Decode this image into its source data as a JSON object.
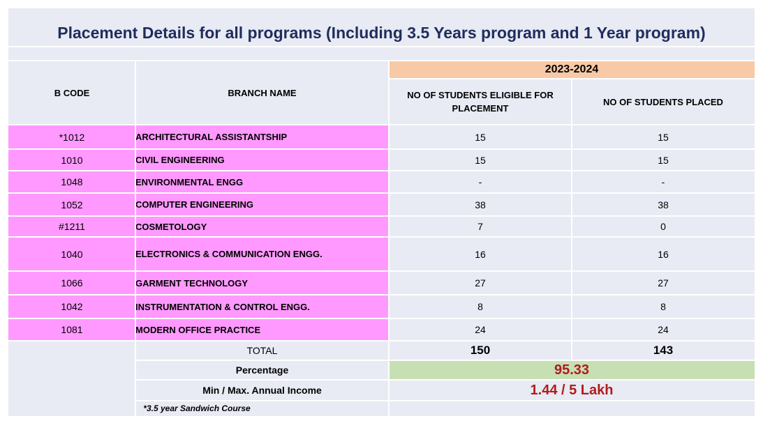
{
  "title": "Placement Details for all programs (Including 3.5 Years program and 1 Year program)",
  "header": {
    "year": "2023-2024",
    "bcode": "B CODE",
    "branch": "BRANCH NAME",
    "eligible": "NO OF STUDENTS ELIGIBLE FOR PLACEMENT",
    "placed": "NO OF STUDENTS PLACED"
  },
  "colors": {
    "pink": "#ff99ff",
    "year_band": "#f7c9a6",
    "percentage_band": "#c6e0b4",
    "title": "#1f2d5c",
    "accent_red": "#b01c1c"
  },
  "rows": [
    {
      "code": "*1012",
      "name": "ARCHITECTURAL ASSISTANTSHIP",
      "eligible": "15",
      "placed": "15"
    },
    {
      "code": "1010",
      "name": "CIVIL ENGINEERING",
      "eligible": "15",
      "placed": "15"
    },
    {
      "code": "1048",
      "name": "ENVIRONMENTAL ENGG",
      "eligible": "-",
      "placed": "-"
    },
    {
      "code": "1052",
      "name": "COMPUTER ENGINEERING",
      "eligible": "38",
      "placed": "38"
    },
    {
      "code": "#1211",
      "name": "COSMETOLOGY",
      "eligible": "7",
      "placed": "0"
    },
    {
      "code": "1040",
      "name": "ELECTRONICS & COMMUNICATION ENGG.",
      "eligible": "16",
      "placed": "16"
    },
    {
      "code": "1066",
      "name": "GARMENT TECHNOLOGY",
      "eligible": "27",
      "placed": "27"
    },
    {
      "code": "1042",
      "name": "INSTRUMENTATION & CONTROL ENGG.",
      "eligible": "8",
      "placed": "8"
    },
    {
      "code": "1081",
      "name": "MODERN OFFICE PRACTICE",
      "eligible": "24",
      "placed": "24"
    }
  ],
  "total": {
    "label": "TOTAL",
    "eligible": "150",
    "placed": "143"
  },
  "percentage": {
    "label": "Percentage",
    "value": "95.33"
  },
  "income": {
    "label": "Min / Max. Annual Income",
    "value": "1.44 / 5 Lakh"
  },
  "footnote": "*3.5 year Sandwich  Course"
}
